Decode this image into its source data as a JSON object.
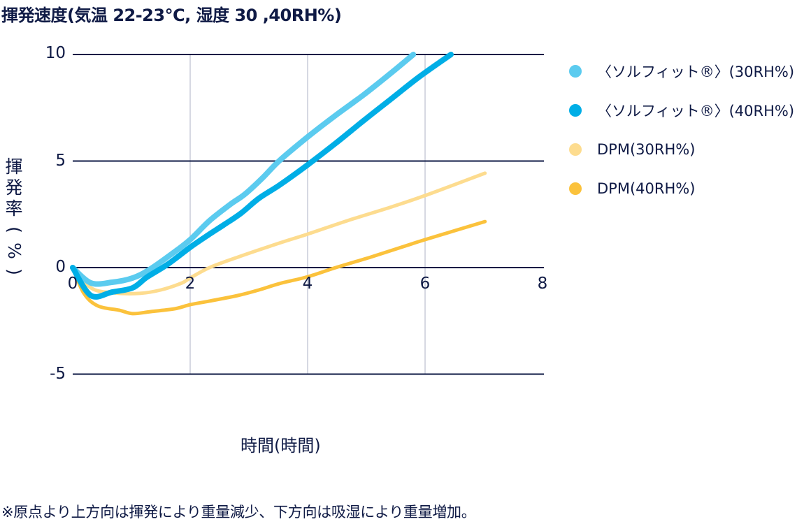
{
  "title": "揮発速度(気温 22-23℃, 湿度 30 ,40RH%)",
  "y_axis": {
    "label_chars": [
      "揮",
      "発",
      "率",
      "(",
      "%",
      ")"
    ],
    "ticks": [
      "10",
      "5",
      "0",
      "-5"
    ]
  },
  "x_axis": {
    "label": "時間(時間)",
    "ticks": [
      "0",
      "2",
      "4",
      "6",
      "8"
    ]
  },
  "legend": [
    {
      "label": "〈ソルフィット®〉(30RH%)",
      "color": "#5bcbef"
    },
    {
      "label": "〈ソルフィット®〉(40RH%)",
      "color": "#00aee6"
    },
    {
      "label": "DPM(30RH%)",
      "color": "#fddc8f"
    },
    {
      "label": "DPM(40RH%)",
      "color": "#fbc23c"
    }
  ],
  "footnote": "※原点より上方向は揮発により重量減少、下方向は吸湿により重量増加。",
  "colors": {
    "text": "#0f1a45",
    "hgrid": "#0f1a45",
    "vgrid": "#c8ccd8"
  },
  "chart_data": {
    "type": "line",
    "title": "揮発速度(気温 22-23℃, 湿度 30 ,40RH%)",
    "xlabel": "時間(時間)",
    "ylabel": "揮発率(%)",
    "xlim": [
      0,
      8
    ],
    "ylim": [
      -5,
      10
    ],
    "xticks": [
      0,
      2,
      4,
      6,
      8
    ],
    "yticks": [
      -5,
      0,
      5,
      10
    ],
    "grid": {
      "horizontal": true,
      "vertical": true
    },
    "legend_position": "right",
    "series": [
      {
        "name": "〈ソルフィット®〉(30RH%)",
        "color": "#5bcbef",
        "x": [
          0,
          0.31,
          0.67,
          1.02,
          1.32,
          1.74,
          2.0,
          2.33,
          2.69,
          2.93,
          3.23,
          3.52,
          4.0,
          4.48,
          4.95,
          5.43,
          5.8
        ],
        "y": [
          0,
          -0.72,
          -0.69,
          -0.49,
          -0.07,
          0.75,
          1.31,
          2.2,
          2.98,
          3.44,
          4.2,
          5.02,
          6.13,
          7.15,
          8.1,
          9.15,
          10.0
        ]
      },
      {
        "name": "〈ソルフィット®〉(40RH%)",
        "color": "#00aee6",
        "x": [
          0,
          0.31,
          0.67,
          1.02,
          1.26,
          1.62,
          2.0,
          2.33,
          2.57,
          2.87,
          3.17,
          3.52,
          4.0,
          4.48,
          4.95,
          5.43,
          5.9,
          6.44
        ],
        "y": [
          0,
          -1.31,
          -1.15,
          -0.95,
          -0.46,
          0.16,
          0.95,
          1.57,
          2.0,
          2.56,
          3.25,
          3.87,
          4.82,
          5.84,
          6.89,
          7.93,
          8.95,
          10.0
        ]
      },
      {
        "name": "DPM(30RH%)",
        "color": "#fddc8f",
        "x": [
          0,
          0.31,
          0.67,
          1.14,
          1.5,
          1.86,
          2.0,
          2.33,
          2.81,
          3.52,
          4.0,
          4.71,
          5.43,
          6.0,
          7.02
        ],
        "y": [
          0,
          -0.95,
          -1.18,
          -1.21,
          -1.05,
          -0.72,
          -0.49,
          0,
          0.49,
          1.15,
          1.57,
          2.23,
          2.85,
          3.38,
          4.43
        ]
      },
      {
        "name": "DPM(40RH%)",
        "color": "#fbc23c",
        "x": [
          0,
          0.19,
          0.43,
          0.79,
          1.02,
          1.32,
          1.74,
          2.0,
          2.33,
          2.81,
          3.17,
          3.52,
          4.0,
          4.48,
          5.07,
          5.67,
          6.0,
          7.02
        ],
        "y": [
          0,
          -1.21,
          -1.8,
          -2.0,
          -2.16,
          -2.07,
          -1.93,
          -1.74,
          -1.57,
          -1.31,
          -1.05,
          -0.75,
          -0.43,
          0,
          0.49,
          1.02,
          1.31,
          2.16
        ]
      }
    ]
  }
}
